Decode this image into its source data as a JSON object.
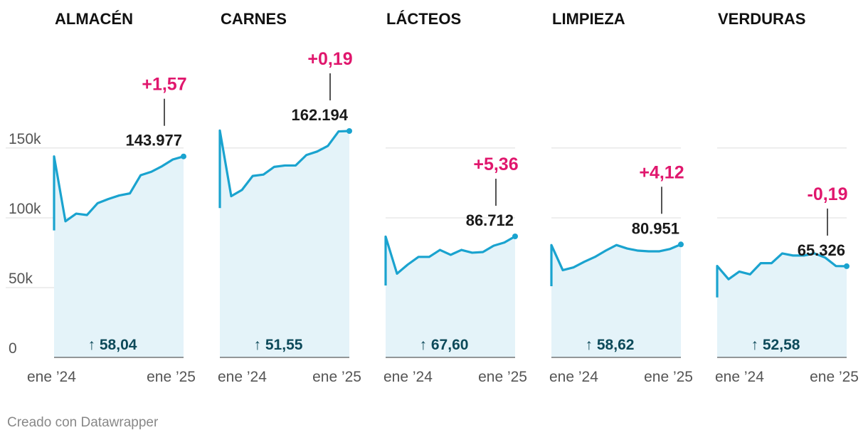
{
  "footer": "Creado con Datawrapper",
  "colors": {
    "line": "#1aa3cf",
    "area": "#e4f3f9",
    "grid": "#dddddd",
    "change": "#e0176d",
    "bottom_label": "#0d4a5a",
    "pointer_line": "#1a1a1a"
  },
  "chart_data": {
    "type": "area",
    "grid": true,
    "x_ticks": [
      "ene ’24",
      "ene ’25"
    ],
    "y_axis": {
      "min": 0,
      "max": 162194,
      "ticks": [
        0,
        50000,
        100000,
        150000
      ],
      "tick_labels": [
        "0",
        "50k",
        "100k",
        "150k"
      ]
    },
    "panels": [
      {
        "title": "ALMACÉN",
        "last_label": "143.977",
        "change_label": "+1,57",
        "bottom_label": "↑ 58,04",
        "values": [
          91000,
          144000,
          97500,
          103000,
          102000,
          110500,
          113500,
          116000,
          117500,
          130500,
          133000,
          137000,
          141800,
          143977
        ]
      },
      {
        "title": "CARNES",
        "last_label": "162.194",
        "change_label": "+0,19",
        "bottom_label": "↑ 51,55",
        "values": [
          107000,
          162500,
          115500,
          120000,
          130000,
          131000,
          136500,
          137500,
          137500,
          145000,
          147500,
          151500,
          161900,
          162194
        ]
      },
      {
        "title": "LÁCTEOS",
        "last_label": "86.712",
        "change_label": "+5,36",
        "bottom_label": "↑ 67,60",
        "values": [
          51500,
          86500,
          60000,
          66500,
          72000,
          72000,
          77000,
          73500,
          77000,
          75000,
          75500,
          80000,
          82300,
          86712
        ]
      },
      {
        "title": "LIMPIEZA",
        "last_label": "80.951",
        "change_label": "+4,12",
        "bottom_label": "↑ 58,62",
        "values": [
          51000,
          80500,
          62500,
          64500,
          68500,
          72000,
          76500,
          80500,
          78000,
          76500,
          76000,
          76000,
          77700,
          80951
        ]
      },
      {
        "title": "VERDURAS",
        "last_label": "65.326",
        "change_label": "-0,19",
        "bottom_label": "↑ 52,58",
        "values": [
          43000,
          65500,
          56000,
          61500,
          59500,
          67500,
          67500,
          74500,
          73000,
          73000,
          74500,
          71500,
          65450,
          65326
        ]
      }
    ]
  }
}
